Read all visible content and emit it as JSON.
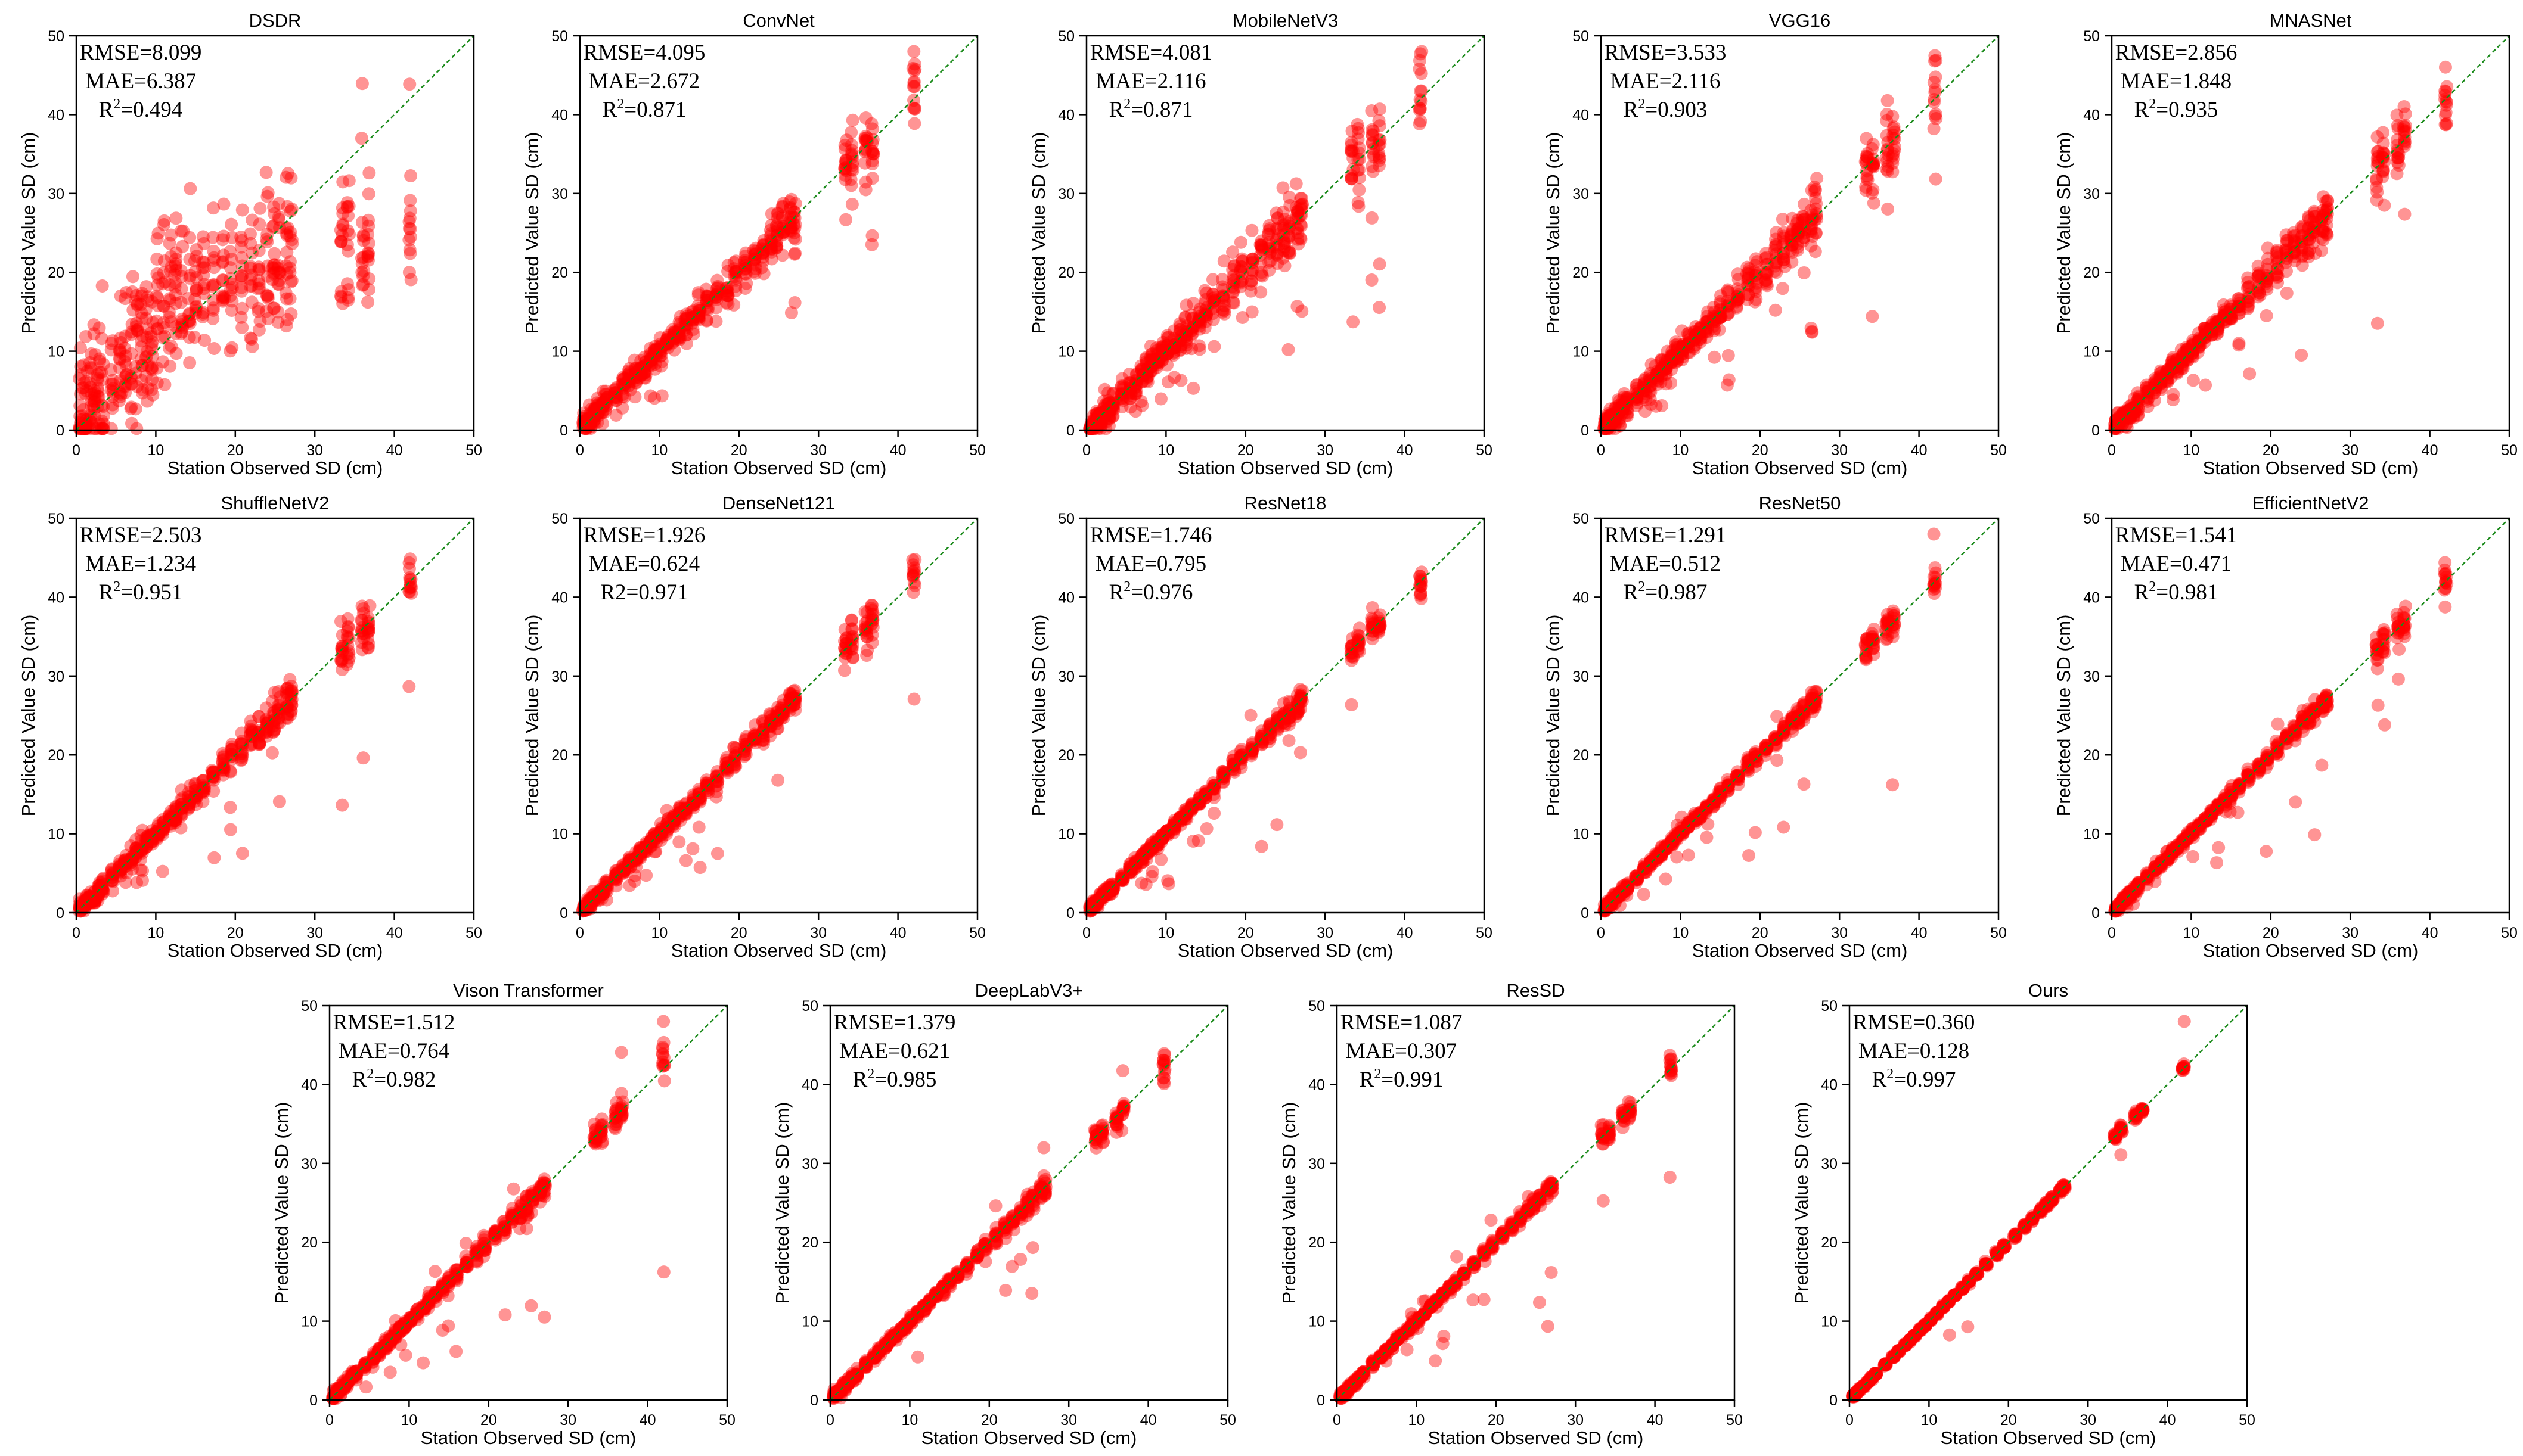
{
  "figure": {
    "xlabel": "Station Observed SD (cm)",
    "ylabel": "Predicted Value SD (cm)",
    "colors": {
      "point": "#ff0000",
      "refline": "#1a8a1a",
      "axes": "#000000"
    }
  },
  "chart_data": [
    {
      "type": "scatter",
      "title": "DSDR",
      "xlim": [
        0,
        50
      ],
      "ylim": [
        0,
        50
      ],
      "stats": {
        "line1": "RMSE=8.099",
        "line2": "MAE=6.387",
        "r2_label": "R",
        "r2_exp": "2",
        "r2_value": "=0.494"
      },
      "spread": 0.46,
      "bias": 0.55,
      "outliers": 0.1
    },
    {
      "type": "scatter",
      "title": "ConvNet",
      "xlim": [
        0,
        50
      ],
      "ylim": [
        0,
        50
      ],
      "stats": {
        "line1": "RMSE=4.095",
        "line2": "MAE=2.672",
        "r2_label": "R",
        "r2_exp": "2",
        "r2_value": "=0.871"
      },
      "spread": 0.18,
      "bias": 0.0,
      "outliers": 0.05
    },
    {
      "type": "scatter",
      "title": "MobileNetV3",
      "xlim": [
        0,
        50
      ],
      "ylim": [
        0,
        50
      ],
      "stats": {
        "line1": "RMSE=4.081",
        "line2": "MAE=2.116",
        "r2_label": "R",
        "r2_exp": "2",
        "r2_value": "=0.871"
      },
      "spread": 0.22,
      "bias": 0.0,
      "outliers": 0.12
    },
    {
      "type": "scatter",
      "title": "VGG16",
      "xlim": [
        0,
        50
      ],
      "ylim": [
        0,
        50
      ],
      "stats": {
        "line1": "RMSE=3.533",
        "line2": "MAE=2.116",
        "r2_label": "R",
        "r2_exp": "2",
        "r2_value": "=0.903"
      },
      "spread": 0.2,
      "bias": 0.0,
      "outliers": 0.08
    },
    {
      "type": "scatter",
      "title": "MNASNet",
      "xlim": [
        0,
        50
      ],
      "ylim": [
        0,
        50
      ],
      "stats": {
        "line1": "RMSE=2.856",
        "line2": "MAE=1.848",
        "r2_label": "R",
        "r2_exp": "2",
        "r2_value": "=0.935"
      },
      "spread": 0.16,
      "bias": 0.0,
      "outliers": 0.06
    },
    {
      "type": "scatter",
      "title": "ShuffleNetV2",
      "xlim": [
        0,
        50
      ],
      "ylim": [
        0,
        50
      ],
      "stats": {
        "line1": "RMSE=2.503",
        "line2": "MAE=1.234",
        "r2_label": "R",
        "r2_exp": "2",
        "r2_value": "=0.951"
      },
      "spread": 0.14,
      "bias": 0.0,
      "outliers": 0.06
    },
    {
      "type": "scatter",
      "title": "DenseNet121",
      "xlim": [
        0,
        50
      ],
      "ylim": [
        0,
        50
      ],
      "stats": {
        "line1": "RMSE=1.926",
        "line2": "MAE=0.624",
        "r2_label": "R2",
        "r2_exp": "",
        "r2_value": "=0.971"
      },
      "spread": 0.1,
      "bias": 0.0,
      "outliers": 0.05
    },
    {
      "type": "scatter",
      "title": "ResNet18",
      "xlim": [
        0,
        50
      ],
      "ylim": [
        0,
        50
      ],
      "stats": {
        "line1": "RMSE=1.746",
        "line2": "MAE=0.795",
        "r2_label": "R",
        "r2_exp": "2",
        "r2_value": "=0.976"
      },
      "spread": 0.08,
      "bias": 0.0,
      "outliers": 0.04
    },
    {
      "type": "scatter",
      "title": "ResNet50",
      "xlim": [
        0,
        50
      ],
      "ylim": [
        0,
        50
      ],
      "stats": {
        "line1": "RMSE=1.291",
        "line2": "MAE=0.512",
        "r2_label": "R",
        "r2_exp": "2",
        "r2_value": "=0.987"
      },
      "spread": 0.07,
      "bias": 0.0,
      "outliers": 0.04
    },
    {
      "type": "scatter",
      "title": "EfficientNetV2",
      "xlim": [
        0,
        50
      ],
      "ylim": [
        0,
        50
      ],
      "stats": {
        "line1": "RMSE=1.541",
        "line2": "MAE=0.471",
        "r2_label": "R",
        "r2_exp": "2",
        "r2_value": "=0.981"
      },
      "spread": 0.07,
      "bias": 0.0,
      "outliers": 0.05
    },
    {
      "type": "scatter",
      "title": "Vison Transformer",
      "xlim": [
        0,
        50
      ],
      "ylim": [
        0,
        50
      ],
      "stats": {
        "line1": "RMSE=1.512",
        "line2": "MAE=0.764",
        "r2_label": "R",
        "r2_exp": "2",
        "r2_value": "=0.982"
      },
      "spread": 0.08,
      "bias": 0.0,
      "outliers": 0.04
    },
    {
      "type": "scatter",
      "title": "DeepLabV3+",
      "xlim": [
        0,
        50
      ],
      "ylim": [
        0,
        50
      ],
      "stats": {
        "line1": "RMSE=1.379",
        "line2": "MAE=0.621",
        "r2_label": "R",
        "r2_exp": "2",
        "r2_value": "=0.985"
      },
      "spread": 0.07,
      "bias": 0.0,
      "outliers": 0.03
    },
    {
      "type": "scatter",
      "title": "ResSD",
      "xlim": [
        0,
        50
      ],
      "ylim": [
        0,
        50
      ],
      "stats": {
        "line1": "RMSE=1.087",
        "line2": "MAE=0.307",
        "r2_label": "R",
        "r2_exp": "2",
        "r2_value": "=0.991"
      },
      "spread": 0.05,
      "bias": 0.0,
      "outliers": 0.03
    },
    {
      "type": "scatter",
      "title": "Ours",
      "xlim": [
        0,
        50
      ],
      "ylim": [
        0,
        50
      ],
      "stats": {
        "line1": "RMSE=0.360",
        "line2": "MAE=0.128",
        "r2_label": "R",
        "r2_exp": "2",
        "r2_value": "=0.997"
      },
      "spread": 0.02,
      "bias": 0.0,
      "outliers": 0.01
    }
  ]
}
